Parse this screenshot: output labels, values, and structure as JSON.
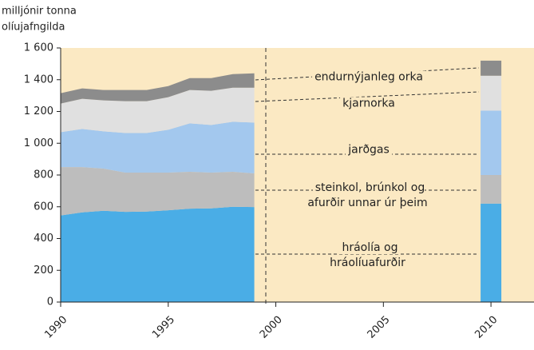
{
  "chart_data": {
    "type": "area",
    "y_label": [
      "milljónir tonna",
      "olíujafngilda"
    ],
    "x": [
      1990,
      1991,
      1992,
      1993,
      1994,
      1995,
      1996,
      1997,
      1998,
      1999
    ],
    "bar_x": 2010,
    "series": [
      {
        "name": "hráolía og hráolíuafurðir",
        "color": "#4aade6",
        "values": [
          545,
          565,
          575,
          568,
          570,
          578,
          588,
          590,
          600,
          598
        ],
        "bar_value": 620
      },
      {
        "name": "steinkol, brúnkol og afurðir unnar úr þeim",
        "color": "#bdbdbd",
        "values": [
          305,
          285,
          265,
          247,
          245,
          237,
          232,
          225,
          220,
          212
        ],
        "bar_value": 180
      },
      {
        "name": "jarðgas",
        "color": "#a3c8ee",
        "values": [
          220,
          240,
          235,
          250,
          250,
          270,
          305,
          300,
          315,
          320
        ],
        "bar_value": 405
      },
      {
        "name": "kjarnorka",
        "color": "#e0e0e0",
        "values": [
          180,
          190,
          195,
          200,
          200,
          205,
          210,
          215,
          215,
          220
        ],
        "bar_value": 220
      },
      {
        "name": "endurnýjanleg orka",
        "color": "#8c8c8c",
        "values": [
          65,
          65,
          65,
          70,
          70,
          70,
          75,
          80,
          85,
          90
        ],
        "bar_value": 95
      }
    ],
    "xlim": [
      1990,
      2012
    ],
    "xticks": [
      1990,
      1995,
      2000,
      2005,
      2010
    ],
    "ylim": [
      0,
      1600
    ],
    "yticks": [
      0,
      200,
      400,
      600,
      800,
      {
        "value": 1000,
        "label": "1 000"
      },
      {
        "value": 1200,
        "label": "1 200"
      },
      {
        "value": 1400,
        "label": "1 400"
      },
      {
        "value": 1600,
        "label": "1 600"
      }
    ],
    "background": "#fbe9c3"
  }
}
